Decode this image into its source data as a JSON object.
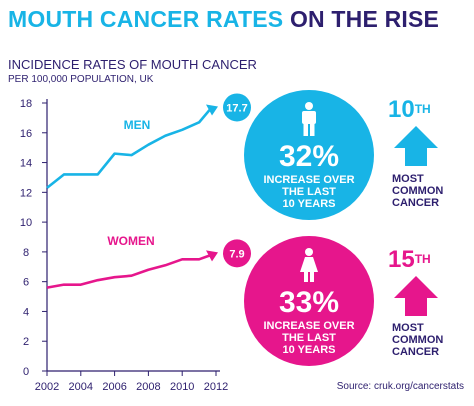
{
  "title": {
    "part1": "MOUTH CANCER RATES",
    "part2": "ON THE RISE"
  },
  "subtitle": "INCIDENCE RATES OF MOUTH CANCER",
  "unit": "PER 100,000 POPULATION, UK",
  "chart_data": {
    "type": "line",
    "title": "INCIDENCE RATES OF MOUTH CANCER",
    "subtitle": "PER 100,000 POPULATION, UK",
    "x": [
      2002,
      2003,
      2004,
      2005,
      2006,
      2007,
      2008,
      2009,
      2010,
      2011,
      2012
    ],
    "xticks": [
      "2002",
      "2004",
      "2006",
      "2008",
      "2010",
      "2012"
    ],
    "yticks": [
      "0",
      "2",
      "4",
      "6",
      "8",
      "10",
      "12",
      "14",
      "16",
      "18"
    ],
    "ylim": [
      0,
      18
    ],
    "xlim": [
      2002,
      2012
    ],
    "grid": false,
    "series": [
      {
        "name": "MEN",
        "color": "#18b4e6",
        "end_label": "17.7",
        "values": [
          12.3,
          13.2,
          13.2,
          13.2,
          14.6,
          14.5,
          15.2,
          15.8,
          16.2,
          16.7,
          17.7
        ]
      },
      {
        "name": "WOMEN",
        "color": "#e6168c",
        "end_label": "7.9",
        "values": [
          5.6,
          5.8,
          5.8,
          6.1,
          6.3,
          6.4,
          6.8,
          7.1,
          7.5,
          7.5,
          7.9
        ]
      }
    ]
  },
  "men": {
    "color": "#18b4e6",
    "percent": "32%",
    "desc": [
      "INCREASE OVER",
      "THE LAST",
      "10 YEARS"
    ],
    "rank_num": "10",
    "rank_suffix": "TH",
    "rank_label": [
      "MOST",
      "COMMON",
      "CANCER"
    ],
    "icon": "man-icon"
  },
  "women": {
    "color": "#e6168c",
    "percent": "33%",
    "desc": [
      "INCREASE OVER",
      "THE LAST",
      "10 YEARS"
    ],
    "rank_num": "15",
    "rank_suffix": "TH",
    "rank_label": [
      "MOST",
      "COMMON",
      "CANCER"
    ],
    "icon": "woman-icon"
  },
  "source": "Source: cruk.org/cancerstats"
}
